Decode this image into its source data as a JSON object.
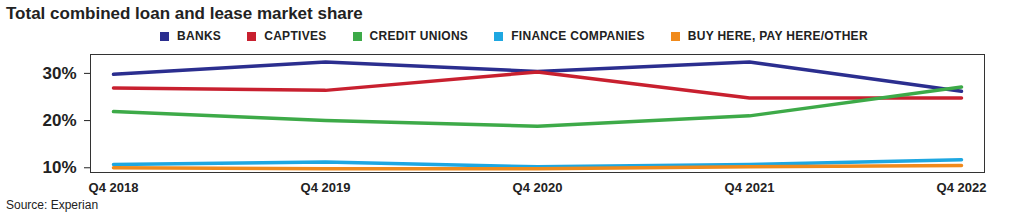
{
  "chart_data": {
    "type": "line",
    "title": "Total combined loan and lease market share",
    "caption": "Source: Experian",
    "categories": [
      "Q4 2018",
      "Q4 2019",
      "Q4 2020",
      "Q4 2021",
      "Q4 2022"
    ],
    "series": [
      {
        "name": "BANKS",
        "color": "#2b2e8f",
        "values": [
          29.8,
          32.4,
          30.4,
          32.4,
          26.2
        ]
      },
      {
        "name": "CAPTIVES",
        "color": "#c8202f",
        "values": [
          26.9,
          26.4,
          30.3,
          24.8,
          24.8
        ]
      },
      {
        "name": "CREDIT UNIONS",
        "color": "#3daa48",
        "values": [
          21.9,
          20.0,
          18.8,
          21.0,
          27.1
        ]
      },
      {
        "name": "FINANCE COMPANIES",
        "color": "#1ea7e1",
        "values": [
          10.7,
          11.2,
          10.2,
          10.7,
          11.7
        ]
      },
      {
        "name": "BUY HERE, PAY HERE/OTHER",
        "color": "#f08a1c",
        "values": [
          10.0,
          9.8,
          9.8,
          10.2,
          10.5
        ]
      }
    ],
    "ylim": [
      9,
      34
    ],
    "yticks": [
      {
        "value": 10,
        "label": "10%"
      },
      {
        "value": 20,
        "label": "20%"
      },
      {
        "value": 30,
        "label": "30%"
      }
    ],
    "grid": false,
    "legend": "top"
  }
}
